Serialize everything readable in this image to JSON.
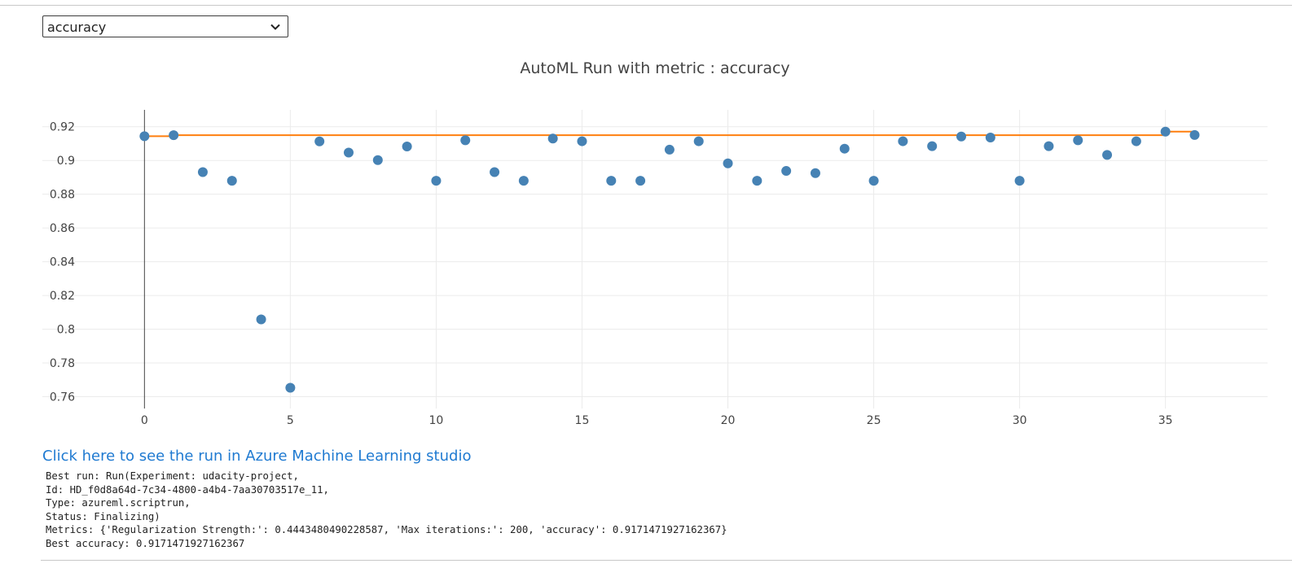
{
  "selector": {
    "value": "accuracy"
  },
  "link": {
    "label": "Click here to see the run in Azure Machine Learning studio"
  },
  "output": {
    "lines": [
      "Best run: Run(Experiment: udacity-project,",
      "Id: HD_f0d8a64d-7c34-4800-a4b4-7aa30703517e_11,",
      "Type: azureml.scriptrun,",
      "Status: Finalizing)",
      "Metrics: {'Regularization Strength:': 0.4443480490228587, 'Max iterations:': 200, 'accuracy': 0.9171471927162367}",
      "Best accuracy: 0.9171471927162367"
    ]
  },
  "chart_data": {
    "type": "scatter",
    "title": "AutoML Run with metric : accuracy",
    "xlabel": "",
    "ylabel": "",
    "xlim": [
      -3.5,
      38.5
    ],
    "ylim": [
      0.753,
      0.93
    ],
    "xticks": [
      0,
      5,
      10,
      15,
      20,
      25,
      30,
      35
    ],
    "yticks": [
      0.76,
      0.78,
      0.8,
      0.82,
      0.84,
      0.86,
      0.88,
      0.9,
      0.92
    ],
    "ytick_labels": [
      "0.76",
      "0.78",
      "0.8",
      "0.82",
      "0.84",
      "0.86",
      "0.88",
      "0.9",
      "0.92"
    ],
    "grid": true,
    "colors": {
      "points": "#4682b4",
      "best_line": "#ff7f0e",
      "grid": "#ebebeb",
      "axis": "#444444"
    },
    "series": [
      {
        "type": "scatter",
        "x": [
          0,
          1,
          2,
          3,
          4,
          5,
          6,
          7,
          8,
          9,
          10,
          11,
          12,
          13,
          14,
          15,
          16,
          17,
          18,
          19,
          20,
          21,
          22,
          23,
          24,
          25,
          26,
          27,
          28,
          29,
          30,
          31,
          32,
          33,
          34,
          35,
          36
        ],
        "y": [
          0.9144,
          0.915,
          0.8931,
          0.888,
          0.8058,
          0.7653,
          0.9113,
          0.9047,
          0.9002,
          0.9083,
          0.888,
          0.912,
          0.8931,
          0.888,
          0.913,
          0.9114,
          0.888,
          0.888,
          0.9064,
          0.9114,
          0.8983,
          0.888,
          0.8938,
          0.8925,
          0.907,
          0.888,
          0.9114,
          0.9085,
          0.9142,
          0.9136,
          0.888,
          0.9085,
          0.912,
          0.9033,
          0.9114,
          0.9171,
          0.9151
        ]
      },
      {
        "type": "step-line",
        "x": [
          0,
          1,
          35,
          36
        ],
        "y": [
          0.9144,
          0.915,
          0.9171,
          0.9171
        ]
      }
    ]
  }
}
